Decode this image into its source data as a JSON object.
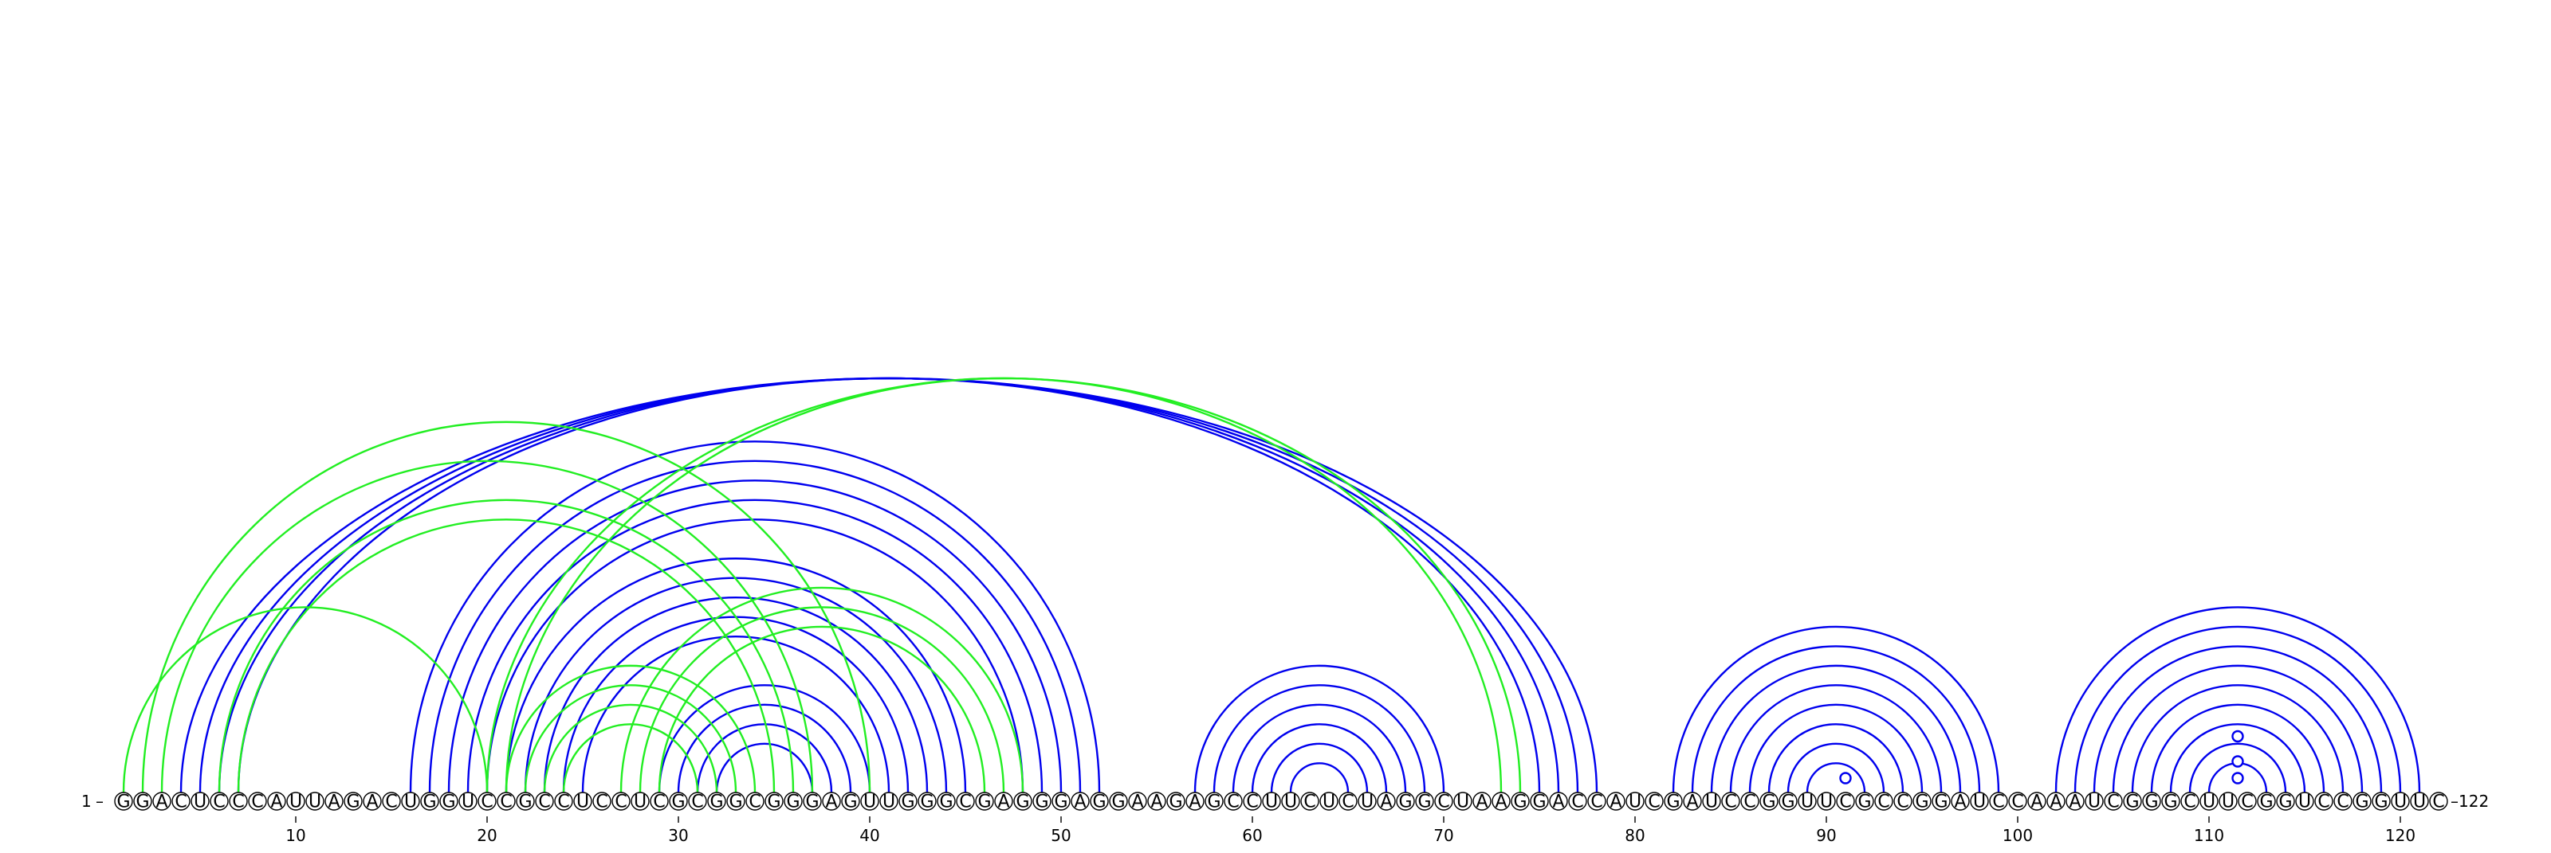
{
  "sequence": "GGACUCCCAUUAGACUGGUCCGCCUCCUCGCGGCGGGAGUUGGGCGAGGGAGGAAGAGCCUUCUCUAGGCUAAGGACCAUCGAUCCGGUUCGCCGGAUCCAAAUCGGGCUUCGGUCCGGUUC",
  "start_label": "1",
  "end_label": "122",
  "ticks": [
    "10",
    "20",
    "30",
    "40",
    "50",
    "60",
    "70",
    "80",
    "90",
    "100",
    "110",
    "120"
  ],
  "colors": {
    "blue": "#0000ee",
    "green": "#22ee22"
  },
  "pairs_blue": [
    [
      4,
      78
    ],
    [
      5,
      77
    ],
    [
      6,
      76
    ],
    [
      7,
      75
    ],
    [
      16,
      52
    ],
    [
      17,
      51
    ],
    [
      18,
      50
    ],
    [
      19,
      49
    ],
    [
      20,
      48
    ],
    [
      21,
      45
    ],
    [
      22,
      44
    ],
    [
      23,
      43
    ],
    [
      24,
      42
    ],
    [
      25,
      41
    ],
    [
      29,
      40
    ],
    [
      30,
      39
    ],
    [
      31,
      38
    ],
    [
      32,
      37
    ],
    [
      57,
      70
    ],
    [
      58,
      69
    ],
    [
      59,
      68
    ],
    [
      60,
      67
    ],
    [
      61,
      66
    ],
    [
      62,
      65
    ],
    [
      82,
      99
    ],
    [
      83,
      98
    ],
    [
      84,
      97
    ],
    [
      85,
      96
    ],
    [
      86,
      95
    ],
    [
      87,
      94
    ],
    [
      88,
      93
    ],
    [
      89,
      92
    ],
    [
      102,
      121
    ],
    [
      103,
      120
    ],
    [
      104,
      119
    ],
    [
      105,
      118
    ],
    [
      106,
      117
    ],
    [
      107,
      116
    ],
    [
      108,
      115
    ],
    [
      109,
      114
    ],
    [
      110,
      113
    ]
  ],
  "pairs_green": [
    [
      1,
      20
    ],
    [
      2,
      40
    ],
    [
      3,
      37
    ],
    [
      6,
      36
    ],
    [
      7,
      35
    ],
    [
      21,
      34
    ],
    [
      22,
      33
    ],
    [
      23,
      32
    ],
    [
      24,
      31
    ],
    [
      27,
      48
    ],
    [
      28,
      47
    ],
    [
      29,
      46
    ],
    [
      20,
      74
    ],
    [
      21,
      73
    ]
  ],
  "loop_markers": [
    {
      "pos": 91,
      "level": 1
    },
    {
      "pos": 111.5,
      "level": 1
    },
    {
      "pos": 111.5,
      "level": 3
    },
    {
      "pos": 111.5,
      "level": 6
    }
  ]
}
